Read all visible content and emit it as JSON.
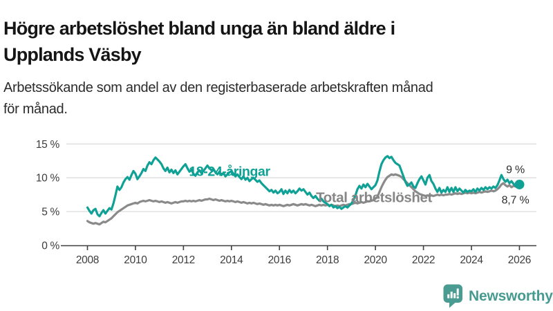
{
  "title": {
    "full": "Högre arbetslöshet bland unga än bland äldre i Upplands Väsby",
    "lines": [
      "Högre arbetslöshet bland unga än bland äldre i",
      "Upplands Väsby"
    ]
  },
  "subtitle": {
    "full": "Arbetssökande som andel av den registerbaserade arbetskraften månad för månad.",
    "lines": [
      "Arbetssökande som andel av den registerbaserade arbetskraften månad",
      "för månad."
    ]
  },
  "branding": {
    "name": "Newsworthy",
    "icon": "newsworthy-bar-chart-bubble-icon",
    "icon_color": "#4a9c92",
    "text_color": "#479a90"
  },
  "chart_data": {
    "type": "line",
    "unit": "%",
    "x_interval": "monthly",
    "x_start": "2008-01",
    "x_end": "2026-01",
    "x_tick_values": [
      2008,
      2010,
      2012,
      2014,
      2016,
      2018,
      2020,
      2022,
      2024,
      2026
    ],
    "x_tick_labels": [
      "2008",
      "2010",
      "2012",
      "2014",
      "2016",
      "2018",
      "2020",
      "2022",
      "2024",
      "2026"
    ],
    "y_tick_values": [
      0,
      5,
      10,
      15
    ],
    "y_tick_labels": [
      "0 %",
      "5 %",
      "10 %",
      "15 %"
    ],
    "ylim": [
      0,
      15.8
    ],
    "grid": "horizontal",
    "colors": {
      "youth": "#0fa195",
      "total": "#8a8a8a",
      "grid": "#dcdcdc",
      "axis": "#3f3f3f"
    },
    "series": [
      {
        "name": "Total arbetslöshet",
        "color": "#8a8a8a",
        "end_dot": false,
        "values": [
          3.6,
          3.4,
          3.3,
          3.2,
          3.3,
          3.2,
          3.1,
          3.3,
          3.5,
          3.4,
          3.6,
          3.8,
          4.0,
          4.3,
          4.6,
          4.9,
          5.1,
          5.3,
          5.5,
          5.7,
          5.9,
          6.0,
          6.1,
          6.2,
          6.3,
          6.2,
          6.4,
          6.5,
          6.6,
          6.5,
          6.6,
          6.7,
          6.6,
          6.5,
          6.6,
          6.5,
          6.4,
          6.5,
          6.4,
          6.3,
          6.4,
          6.3,
          6.2,
          6.3,
          6.4,
          6.3,
          6.4,
          6.5,
          6.5,
          6.6,
          6.5,
          6.6,
          6.5,
          6.6,
          6.5,
          6.6,
          6.7,
          6.6,
          6.7,
          6.8,
          6.8,
          6.9,
          6.8,
          6.7,
          6.8,
          6.7,
          6.6,
          6.7,
          6.6,
          6.5,
          6.6,
          6.5,
          6.6,
          6.5,
          6.4,
          6.5,
          6.4,
          6.3,
          6.4,
          6.3,
          6.2,
          6.3,
          6.2,
          6.3,
          6.2,
          6.1,
          6.2,
          6.1,
          6.0,
          6.1,
          6.0,
          5.9,
          6.0,
          5.9,
          6.0,
          5.9,
          6.0,
          5.9,
          5.8,
          5.9,
          6.0,
          5.9,
          6.0,
          6.1,
          6.0,
          5.9,
          6.0,
          6.1,
          6.0,
          6.1,
          6.0,
          5.9,
          6.0,
          5.9,
          5.8,
          5.9,
          6.0,
          5.9,
          6.0,
          5.9,
          6.0,
          5.9,
          6.0,
          5.9,
          5.8,
          5.9,
          5.8,
          5.9,
          6.0,
          5.9,
          6.0,
          6.1,
          6.1,
          6.2,
          6.3,
          6.2,
          6.3,
          6.4,
          6.3,
          6.4,
          6.5,
          6.5,
          6.6,
          6.7,
          6.9,
          7.2,
          7.9,
          8.6,
          9.2,
          9.7,
          10.1,
          10.3,
          10.5,
          10.4,
          10.5,
          10.4,
          10.3,
          10.1,
          9.8,
          9.5,
          9.2,
          8.9,
          8.6,
          8.3,
          8.0,
          7.8,
          7.6,
          7.5,
          7.4,
          7.3,
          7.4,
          7.3,
          7.4,
          7.3,
          7.4,
          7.5,
          7.4,
          7.5,
          7.4,
          7.5,
          7.5,
          7.6,
          7.5,
          7.6,
          7.7,
          7.6,
          7.7,
          7.6,
          7.7,
          7.8,
          7.7,
          7.8,
          7.7,
          7.8,
          7.7,
          7.8,
          7.9,
          7.8,
          7.9,
          8.0,
          7.9,
          8.0,
          8.1,
          8.0,
          8.1,
          8.3,
          8.6,
          9.0,
          9.2,
          8.9,
          8.7,
          8.9,
          8.6,
          8.8,
          8.7,
          8.6,
          8.7
        ]
      },
      {
        "name": "18-24-åringar",
        "color": "#0fa195",
        "end_dot": true,
        "values": [
          5.6,
          5.1,
          4.7,
          5.2,
          5.4,
          4.6,
          4.3,
          4.8,
          5.2,
          4.7,
          5.1,
          5.5,
          5.3,
          6.2,
          7.4,
          8.7,
          8.2,
          8.6,
          9.3,
          9.8,
          10.1,
          9.7,
          10.4,
          11.0,
          10.6,
          9.8,
          10.2,
          10.7,
          11.3,
          11.0,
          11.8,
          12.3,
          12.0,
          12.6,
          13.0,
          12.7,
          12.4,
          12.0,
          11.4,
          11.0,
          11.5,
          10.8,
          11.2,
          10.7,
          11.1,
          10.5,
          10.9,
          11.3,
          11.7,
          12.0,
          11.4,
          10.9,
          11.2,
          10.6,
          10.3,
          10.8,
          11.1,
          10.7,
          11.0,
          11.4,
          11.8,
          11.4,
          11.1,
          11.3,
          10.8,
          10.5,
          10.9,
          10.4,
          10.7,
          10.2,
          10.5,
          10.8,
          11.0,
          10.6,
          10.2,
          10.5,
          10.1,
          9.8,
          10.2,
          9.7,
          10.0,
          9.5,
          9.8,
          10.0,
          9.7,
          9.4,
          9.6,
          9.2,
          8.9,
          8.6,
          8.3,
          8.0,
          8.2,
          7.8,
          8.1,
          7.7,
          7.9,
          8.3,
          7.6,
          8.1,
          7.7,
          8.2,
          7.8,
          8.1,
          7.7,
          8.0,
          8.4,
          8.1,
          8.3,
          7.9,
          7.5,
          7.8,
          7.3,
          7.0,
          7.3,
          6.9,
          6.6,
          6.9,
          6.5,
          6.3,
          6.1,
          5.8,
          6.0,
          5.6,
          5.8,
          5.5,
          5.7,
          5.4,
          5.6,
          5.8,
          5.6,
          5.9,
          6.2,
          6.7,
          7.4,
          8.3,
          8.8,
          8.4,
          9.0,
          8.6,
          9.1,
          8.7,
          8.3,
          8.6,
          8.9,
          9.6,
          10.9,
          12.0,
          12.6,
          13.0,
          13.2,
          12.9,
          13.1,
          12.6,
          12.2,
          12.0,
          11.8,
          11.0,
          10.2,
          9.4,
          8.8,
          9.0,
          9.3,
          8.7,
          8.5,
          9.2,
          9.8,
          10.2,
          9.6,
          9.0,
          10.0,
          10.4,
          9.5,
          9.1,
          8.4,
          7.9,
          8.5,
          7.8,
          8.2,
          7.9,
          8.6,
          7.9,
          8.5,
          7.9,
          8.6,
          8.0,
          8.4,
          8.1,
          7.8,
          8.2,
          7.9,
          8.1,
          8.0,
          8.3,
          7.9,
          8.4,
          8.1,
          8.5,
          8.2,
          8.6,
          8.3,
          8.6,
          8.4,
          8.7,
          8.5,
          8.9,
          9.6,
          10.4,
          9.8,
          9.4,
          9.7,
          9.2,
          9.5,
          9.1,
          8.8,
          9.1,
          9.0
        ]
      }
    ],
    "series_labels": [
      {
        "text": "18-24-åringar",
        "year": 2013.92,
        "value": 11.0,
        "color": "#0fa195",
        "size": 19.5
      },
      {
        "text": "Total arbetslöshet",
        "year": 2019.94,
        "value": 7.1,
        "color": "#868686",
        "size": 20.5
      }
    ],
    "annotations": [
      {
        "text": "9 %",
        "year": 2025.83,
        "value": 11.2,
        "color": "#2e2e2e"
      },
      {
        "text": "8,7 %",
        "year": 2025.83,
        "value": 6.7,
        "color": "#2e2e2e"
      }
    ]
  }
}
